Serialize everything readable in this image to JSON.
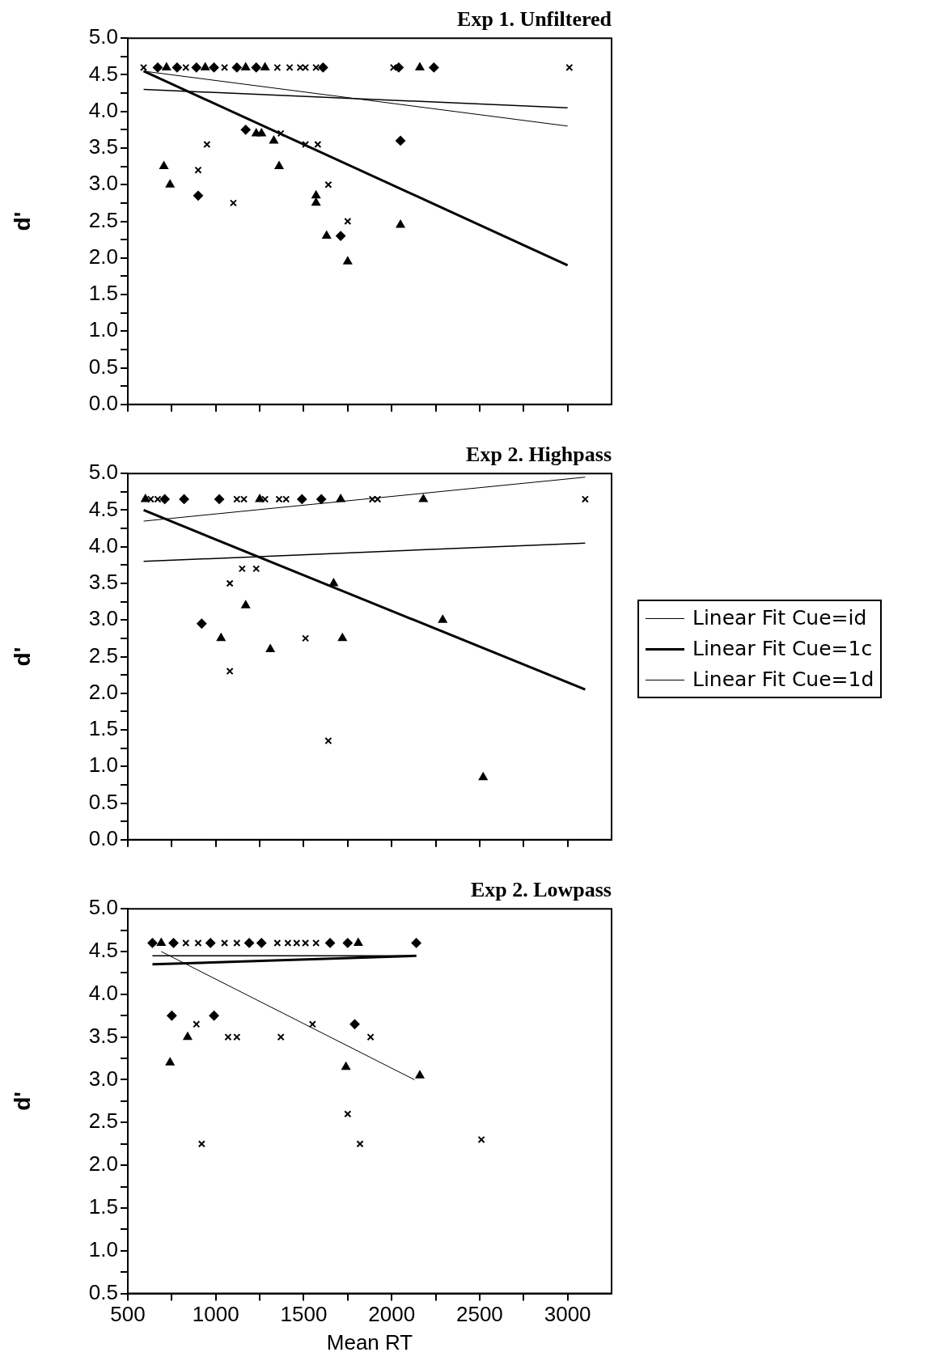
{
  "chart_data": [
    {
      "type": "scatter",
      "title": "Exp 1. Unfiltered",
      "ylabel": "d'",
      "xlim": [
        500,
        3250
      ],
      "ylim": [
        0,
        5
      ],
      "tick_labels": "y",
      "grid": false,
      "legend": false,
      "xticks": [
        500,
        {
          "value": 750,
          "label": null
        },
        1000,
        {
          "value": 1250,
          "label": null
        },
        1500,
        {
          "value": 1750,
          "label": null
        },
        2000,
        {
          "value": 2250,
          "label": null
        },
        2500,
        {
          "value": 2750,
          "label": null
        },
        3000
      ],
      "yticks": [
        {
          "value": 0,
          "label": "0.0"
        },
        {
          "value": 0.25,
          "label": null
        },
        {
          "value": 0.5,
          "label": "0.5"
        },
        {
          "value": 0.75,
          "label": null
        },
        {
          "value": 1,
          "label": "1.0"
        },
        {
          "value": 1.25,
          "label": null
        },
        {
          "value": 1.5,
          "label": "1.5"
        },
        {
          "value": 1.75,
          "label": null
        },
        {
          "value": 2,
          "label": "2.0"
        },
        {
          "value": 2.25,
          "label": null
        },
        {
          "value": 2.5,
          "label": "2.5"
        },
        {
          "value": 2.75,
          "label": null
        },
        {
          "value": 3,
          "label": "3.0"
        },
        {
          "value": 3.25,
          "label": null
        },
        {
          "value": 3.5,
          "label": "3.5"
        },
        {
          "value": 3.75,
          "label": null
        },
        {
          "value": 4,
          "label": "4.0"
        },
        {
          "value": 4.25,
          "label": null
        },
        {
          "value": 4.5,
          "label": "4.5"
        },
        {
          "value": 4.75,
          "label": null
        },
        {
          "value": 5,
          "label": "5.0"
        }
      ],
      "series": [
        {
          "type": "scatter",
          "marker": "cross",
          "color": "#000000",
          "x": [
            590,
            830,
            1050,
            1350,
            1420,
            1480,
            1510,
            1570,
            2010,
            3010,
            950,
            1370,
            1510,
            1580,
            900,
            1640,
            1100,
            1750
          ],
          "values": [
            4.6,
            4.6,
            4.6,
            4.6,
            4.6,
            4.6,
            4.6,
            4.6,
            4.6,
            4.6,
            3.55,
            3.7,
            3.55,
            3.55,
            3.2,
            3.0,
            2.75,
            2.5
          ]
        },
        {
          "type": "scatter",
          "marker": "diamond",
          "color": "#000000",
          "x": [
            670,
            780,
            890,
            990,
            1120,
            1230,
            1610,
            2040,
            2240,
            1170,
            2050,
            900,
            1710
          ],
          "values": [
            4.6,
            4.6,
            4.6,
            4.6,
            4.6,
            4.6,
            4.6,
            4.6,
            4.6,
            3.75,
            3.6,
            2.85,
            2.3
          ]
        },
        {
          "type": "scatter",
          "marker": "triangle",
          "color": "#000000",
          "x": [
            720,
            940,
            1170,
            1280,
            2160,
            1230,
            1260,
            1330,
            705,
            1360,
            740,
            1570,
            1570,
            2050,
            1630,
            1750
          ],
          "values": [
            4.6,
            4.6,
            4.6,
            4.6,
            4.6,
            3.7,
            3.7,
            3.6,
            3.25,
            3.25,
            3.0,
            2.85,
            2.75,
            2.45,
            2.3,
            1.95
          ]
        },
        {
          "type": "line",
          "marker": "none",
          "line_style": "solid",
          "color": "#000000",
          "x": [
            590,
            3000
          ],
          "values": [
            4.3,
            4.05
          ]
        },
        {
          "type": "line",
          "marker": "none",
          "line_style": "solid",
          "color": "#000000",
          "x": [
            590,
            3000
          ],
          "values": [
            4.55,
            1.9
          ]
        },
        {
          "type": "line",
          "marker": "none",
          "line_style": "solid",
          "color": "#000000",
          "x": [
            590,
            3000
          ],
          "values": [
            4.55,
            3.8
          ]
        }
      ]
    },
    {
      "type": "scatter",
      "title": "Exp 2. Highpass",
      "ylabel": "d'",
      "xlim": [
        500,
        3250
      ],
      "ylim": [
        0,
        5
      ],
      "tick_labels": "y",
      "grid": false,
      "legend": "right",
      "xticks": [
        500,
        {
          "value": 750,
          "label": null
        },
        1000,
        {
          "value": 1250,
          "label": null
        },
        1500,
        {
          "value": 1750,
          "label": null
        },
        2000,
        {
          "value": 2250,
          "label": null
        },
        2500,
        {
          "value": 2750,
          "label": null
        },
        3000
      ],
      "yticks": [
        {
          "value": 0,
          "label": "0.0"
        },
        {
          "value": 0.25,
          "label": null
        },
        {
          "value": 0.5,
          "label": "0.5"
        },
        {
          "value": 0.75,
          "label": null
        },
        {
          "value": 1,
          "label": "1.0"
        },
        {
          "value": 1.25,
          "label": null
        },
        {
          "value": 1.5,
          "label": "1.5"
        },
        {
          "value": 1.75,
          "label": null
        },
        {
          "value": 2,
          "label": "2.0"
        },
        {
          "value": 2.25,
          "label": null
        },
        {
          "value": 2.5,
          "label": "2.5"
        },
        {
          "value": 2.75,
          "label": null
        },
        {
          "value": 3,
          "label": "3.0"
        },
        {
          "value": 3.25,
          "label": null
        },
        {
          "value": 3.5,
          "label": "3.5"
        },
        {
          "value": 3.75,
          "label": null
        },
        {
          "value": 4,
          "label": "4.0"
        },
        {
          "value": 4.25,
          "label": null
        },
        {
          "value": 4.5,
          "label": "4.5"
        },
        {
          "value": 4.75,
          "label": null
        },
        {
          "value": 5,
          "label": "5.0"
        }
      ],
      "series": [
        {
          "type": "scatter",
          "marker": "cross",
          "color": "#000000",
          "x": [
            630,
            670,
            1120,
            1160,
            1280,
            1360,
            1400,
            1890,
            1920,
            3100,
            1150,
            1230,
            1080,
            1510,
            1080,
            1640
          ],
          "values": [
            4.65,
            4.65,
            4.65,
            4.65,
            4.65,
            4.65,
            4.65,
            4.65,
            4.65,
            4.65,
            3.7,
            3.7,
            3.5,
            2.75,
            2.3,
            1.35
          ]
        },
        {
          "type": "scatter",
          "marker": "diamond",
          "color": "#000000",
          "x": [
            710,
            820,
            1020,
            1490,
            1600,
            920
          ],
          "values": [
            4.65,
            4.65,
            4.65,
            4.65,
            4.65,
            2.95
          ]
        },
        {
          "type": "scatter",
          "marker": "triangle",
          "color": "#000000",
          "x": [
            600,
            1250,
            1710,
            2180,
            1670,
            1170,
            2290,
            1030,
            1720,
            1310,
            2520
          ],
          "values": [
            4.65,
            4.65,
            4.65,
            4.65,
            3.5,
            3.2,
            3.0,
            2.75,
            2.75,
            2.6,
            0.85
          ]
        },
        {
          "type": "line",
          "name": "Linear Fit Cue=id",
          "marker": "none",
          "line_style": "solid",
          "color": "#000000",
          "x": [
            590,
            3100
          ],
          "values": [
            3.8,
            4.05
          ]
        },
        {
          "type": "line",
          "name": "Linear Fit Cue=1c",
          "marker": "none",
          "line_style": "solid",
          "color": "#000000",
          "x": [
            590,
            3100
          ],
          "values": [
            4.5,
            2.05
          ]
        },
        {
          "type": "line",
          "name": "Linear Fit Cue=1d",
          "marker": "none",
          "line_style": "solid",
          "color": "#000000",
          "x": [
            590,
            3100
          ],
          "values": [
            4.35,
            4.95
          ]
        }
      ]
    },
    {
      "type": "scatter",
      "title": "Exp 2. Lowpass",
      "ylabel": "d'",
      "xlabel": "Mean RT",
      "xlim": [
        500,
        3250
      ],
      "ylim": [
        0.5,
        5
      ],
      "grid": false,
      "legend": false,
      "xticks": [
        500,
        {
          "value": 750,
          "label": null
        },
        1000,
        {
          "value": 1250,
          "label": null
        },
        1500,
        {
          "value": 1750,
          "label": null
        },
        2000,
        {
          "value": 2250,
          "label": null
        },
        2500,
        {
          "value": 2750,
          "label": null
        },
        3000
      ],
      "yticks": [
        {
          "value": 0.5,
          "label": "0.5"
        },
        {
          "value": 0.75,
          "label": null
        },
        {
          "value": 1,
          "label": "1.0"
        },
        {
          "value": 1.25,
          "label": null
        },
        {
          "value": 1.5,
          "label": "1.5"
        },
        {
          "value": 1.75,
          "label": null
        },
        {
          "value": 2,
          "label": "2.0"
        },
        {
          "value": 2.25,
          "label": null
        },
        {
          "value": 2.5,
          "label": "2.5"
        },
        {
          "value": 2.75,
          "label": null
        },
        {
          "value": 3,
          "label": "3.0"
        },
        {
          "value": 3.25,
          "label": null
        },
        {
          "value": 3.5,
          "label": "3.5"
        },
        {
          "value": 3.75,
          "label": null
        },
        {
          "value": 4,
          "label": "4.0"
        },
        {
          "value": 4.25,
          "label": null
        },
        {
          "value": 4.5,
          "label": "4.5"
        },
        {
          "value": 4.75,
          "label": null
        },
        {
          "value": 5,
          "label": "5.0"
        }
      ],
      "series": [
        {
          "type": "scatter",
          "marker": "cross",
          "color": "#000000",
          "x": [
            830,
            900,
            1050,
            1120,
            1350,
            1410,
            1460,
            1510,
            1570,
            890,
            1070,
            1120,
            1370,
            1550,
            1880,
            1750,
            920,
            1820,
            2510
          ],
          "values": [
            4.6,
            4.6,
            4.6,
            4.6,
            4.6,
            4.6,
            4.6,
            4.6,
            4.6,
            3.65,
            3.5,
            3.5,
            3.5,
            3.65,
            3.5,
            2.6,
            2.25,
            2.25,
            2.3
          ]
        },
        {
          "type": "scatter",
          "marker": "diamond",
          "color": "#000000",
          "x": [
            640,
            760,
            970,
            1190,
            1260,
            1650,
            1750,
            2140,
            750,
            990,
            1790
          ],
          "values": [
            4.6,
            4.6,
            4.6,
            4.6,
            4.6,
            4.6,
            4.6,
            4.6,
            3.75,
            3.75,
            3.65
          ]
        },
        {
          "type": "scatter",
          "marker": "triangle",
          "color": "#000000",
          "x": [
            690,
            1810,
            840,
            740,
            1740,
            2160
          ],
          "values": [
            4.6,
            4.6,
            3.5,
            3.2,
            3.15,
            3.05
          ]
        },
        {
          "type": "line",
          "marker": "none",
          "line_style": "solid",
          "color": "#000000",
          "x": [
            640,
            2140
          ],
          "values": [
            4.45,
            4.45
          ]
        },
        {
          "type": "line",
          "marker": "none",
          "line_style": "solid",
          "color": "#000000",
          "x": [
            640,
            2140
          ],
          "values": [
            4.35,
            4.45
          ]
        },
        {
          "type": "line",
          "marker": "none",
          "line_style": "solid",
          "color": "#000000",
          "x": [
            690,
            2130
          ],
          "values": [
            4.5,
            3.0
          ]
        }
      ]
    }
  ]
}
